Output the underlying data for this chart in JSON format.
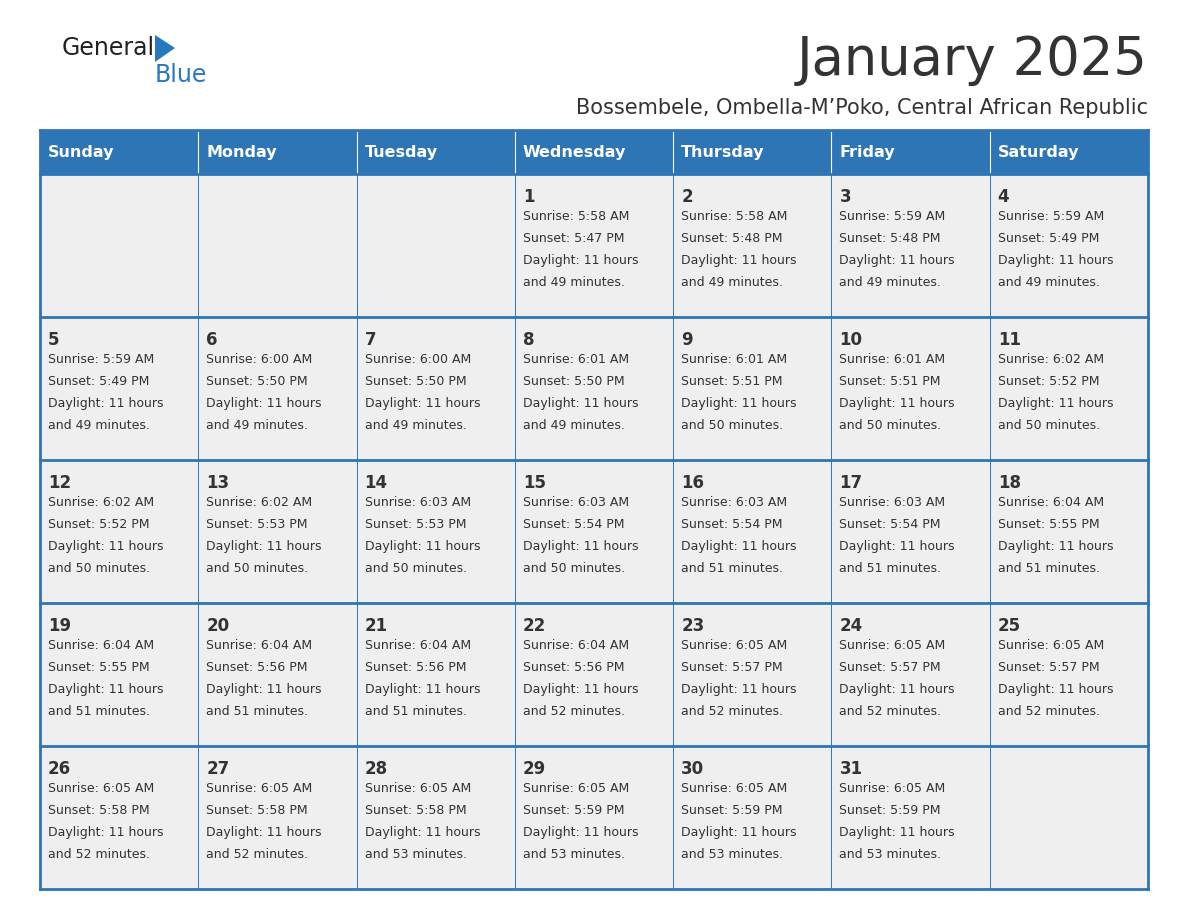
{
  "title": "January 2025",
  "subtitle": "Bossembele, Ombella-M’Poko, Central African Republic",
  "days_of_week": [
    "Sunday",
    "Monday",
    "Tuesday",
    "Wednesday",
    "Thursday",
    "Friday",
    "Saturday"
  ],
  "header_bg": "#2E75B6",
  "header_text": "#FFFFFF",
  "cell_bg": "#EFEFEF",
  "border_color": "#2E75B6",
  "text_color": "#333333",
  "logo_general_color": "#222222",
  "logo_blue_color": "#2878C0",
  "calendar_data": [
    [
      {
        "day": "",
        "sunrise": "",
        "sunset": "",
        "daylight": ""
      },
      {
        "day": "",
        "sunrise": "",
        "sunset": "",
        "daylight": ""
      },
      {
        "day": "",
        "sunrise": "",
        "sunset": "",
        "daylight": ""
      },
      {
        "day": "1",
        "sunrise": "5:58 AM",
        "sunset": "5:47 PM",
        "daylight": "11 hours and 49 minutes."
      },
      {
        "day": "2",
        "sunrise": "5:58 AM",
        "sunset": "5:48 PM",
        "daylight": "11 hours and 49 minutes."
      },
      {
        "day": "3",
        "sunrise": "5:59 AM",
        "sunset": "5:48 PM",
        "daylight": "11 hours and 49 minutes."
      },
      {
        "day": "4",
        "sunrise": "5:59 AM",
        "sunset": "5:49 PM",
        "daylight": "11 hours and 49 minutes."
      }
    ],
    [
      {
        "day": "5",
        "sunrise": "5:59 AM",
        "sunset": "5:49 PM",
        "daylight": "11 hours and 49 minutes."
      },
      {
        "day": "6",
        "sunrise": "6:00 AM",
        "sunset": "5:50 PM",
        "daylight": "11 hours and 49 minutes."
      },
      {
        "day": "7",
        "sunrise": "6:00 AM",
        "sunset": "5:50 PM",
        "daylight": "11 hours and 49 minutes."
      },
      {
        "day": "8",
        "sunrise": "6:01 AM",
        "sunset": "5:50 PM",
        "daylight": "11 hours and 49 minutes."
      },
      {
        "day": "9",
        "sunrise": "6:01 AM",
        "sunset": "5:51 PM",
        "daylight": "11 hours and 50 minutes."
      },
      {
        "day": "10",
        "sunrise": "6:01 AM",
        "sunset": "5:51 PM",
        "daylight": "11 hours and 50 minutes."
      },
      {
        "day": "11",
        "sunrise": "6:02 AM",
        "sunset": "5:52 PM",
        "daylight": "11 hours and 50 minutes."
      }
    ],
    [
      {
        "day": "12",
        "sunrise": "6:02 AM",
        "sunset": "5:52 PM",
        "daylight": "11 hours and 50 minutes."
      },
      {
        "day": "13",
        "sunrise": "6:02 AM",
        "sunset": "5:53 PM",
        "daylight": "11 hours and 50 minutes."
      },
      {
        "day": "14",
        "sunrise": "6:03 AM",
        "sunset": "5:53 PM",
        "daylight": "11 hours and 50 minutes."
      },
      {
        "day": "15",
        "sunrise": "6:03 AM",
        "sunset": "5:54 PM",
        "daylight": "11 hours and 50 minutes."
      },
      {
        "day": "16",
        "sunrise": "6:03 AM",
        "sunset": "5:54 PM",
        "daylight": "11 hours and 51 minutes."
      },
      {
        "day": "17",
        "sunrise": "6:03 AM",
        "sunset": "5:54 PM",
        "daylight": "11 hours and 51 minutes."
      },
      {
        "day": "18",
        "sunrise": "6:04 AM",
        "sunset": "5:55 PM",
        "daylight": "11 hours and 51 minutes."
      }
    ],
    [
      {
        "day": "19",
        "sunrise": "6:04 AM",
        "sunset": "5:55 PM",
        "daylight": "11 hours and 51 minutes."
      },
      {
        "day": "20",
        "sunrise": "6:04 AM",
        "sunset": "5:56 PM",
        "daylight": "11 hours and 51 minutes."
      },
      {
        "day": "21",
        "sunrise": "6:04 AM",
        "sunset": "5:56 PM",
        "daylight": "11 hours and 51 minutes."
      },
      {
        "day": "22",
        "sunrise": "6:04 AM",
        "sunset": "5:56 PM",
        "daylight": "11 hours and 52 minutes."
      },
      {
        "day": "23",
        "sunrise": "6:05 AM",
        "sunset": "5:57 PM",
        "daylight": "11 hours and 52 minutes."
      },
      {
        "day": "24",
        "sunrise": "6:05 AM",
        "sunset": "5:57 PM",
        "daylight": "11 hours and 52 minutes."
      },
      {
        "day": "25",
        "sunrise": "6:05 AM",
        "sunset": "5:57 PM",
        "daylight": "11 hours and 52 minutes."
      }
    ],
    [
      {
        "day": "26",
        "sunrise": "6:05 AM",
        "sunset": "5:58 PM",
        "daylight": "11 hours and 52 minutes."
      },
      {
        "day": "27",
        "sunrise": "6:05 AM",
        "sunset": "5:58 PM",
        "daylight": "11 hours and 52 minutes."
      },
      {
        "day": "28",
        "sunrise": "6:05 AM",
        "sunset": "5:58 PM",
        "daylight": "11 hours and 53 minutes."
      },
      {
        "day": "29",
        "sunrise": "6:05 AM",
        "sunset": "5:59 PM",
        "daylight": "11 hours and 53 minutes."
      },
      {
        "day": "30",
        "sunrise": "6:05 AM",
        "sunset": "5:59 PM",
        "daylight": "11 hours and 53 minutes."
      },
      {
        "day": "31",
        "sunrise": "6:05 AM",
        "sunset": "5:59 PM",
        "daylight": "11 hours and 53 minutes."
      },
      {
        "day": "",
        "sunrise": "",
        "sunset": "",
        "daylight": ""
      }
    ]
  ]
}
